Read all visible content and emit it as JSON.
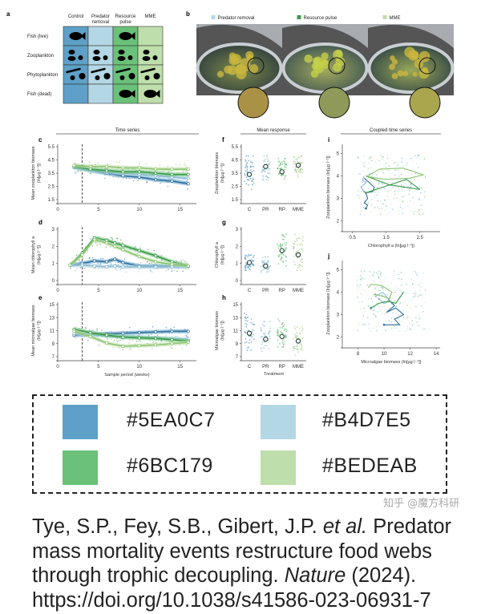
{
  "panel_a": {
    "label": "a",
    "columns": [
      "Control",
      "Predator\nremoval",
      "Resource\npulse",
      "MME"
    ],
    "rows": [
      "Fish (live)",
      "Zooplankton",
      "Phytoplankton",
      "Fish (dead)"
    ],
    "column_colors": [
      "#5EA0C7",
      "#B4D7E5",
      "#6BC179",
      "#BEDEAB"
    ],
    "presence": [
      [
        1,
        0,
        1,
        0
      ],
      [
        1,
        1,
        1,
        1
      ],
      [
        1,
        1,
        1,
        1
      ],
      [
        0,
        0,
        1,
        1
      ]
    ]
  },
  "panel_b": {
    "label": "b",
    "legend": [
      {
        "label": "Predator removal",
        "color": "#B4D7E5"
      },
      {
        "label": "Resource pulse",
        "color": "#3f9a4c"
      },
      {
        "label": "MME",
        "color": "#BEDEAB"
      }
    ]
  },
  "section_titles": {
    "time_series": "Time series",
    "mean_response": "Mean response",
    "coupled": "Coupled time series"
  },
  "chart_data": [
    {
      "id": "c",
      "label": "c",
      "type": "line",
      "ylabel": "Mean zooplankton biomass\n(ln[µg l⁻¹])",
      "xlim": [
        0,
        17
      ],
      "ylim": [
        1.5,
        5.5
      ],
      "xticks": [
        0,
        5,
        10,
        15
      ],
      "yticks": [
        1.5,
        2.5,
        3.5,
        4.5,
        5.5
      ],
      "event_week": 3,
      "x": [
        2,
        4,
        6,
        8,
        10,
        12,
        14,
        16
      ],
      "series": [
        {
          "treatment": "C",
          "color": "#2f6f9f",
          "values": [
            4.0,
            3.7,
            3.5,
            3.3,
            3.2,
            3.0,
            2.9,
            2.7
          ]
        },
        {
          "treatment": "PR",
          "color": "#8fbdd3",
          "values": [
            3.9,
            3.7,
            3.6,
            3.5,
            3.4,
            3.3,
            3.2,
            3.1
          ]
        },
        {
          "treatment": "RP",
          "color": "#3a9a4a",
          "values": [
            4.0,
            3.8,
            3.7,
            3.6,
            3.6,
            3.5,
            3.4,
            3.4
          ]
        },
        {
          "treatment": "MME",
          "color": "#8cc56f",
          "values": [
            4.1,
            4.0,
            4.0,
            3.9,
            3.9,
            3.8,
            3.8,
            3.8
          ]
        }
      ]
    },
    {
      "id": "d",
      "label": "d",
      "type": "line",
      "ylabel": "Mean chlorophyll a\n(ln[µg l⁻¹])",
      "xlim": [
        0,
        17
      ],
      "ylim": [
        0,
        3
      ],
      "xticks": [
        0,
        5,
        10,
        15
      ],
      "yticks": [
        0,
        1,
        2,
        3
      ],
      "event_week": 3,
      "x": [
        1.5,
        3,
        4.5,
        6,
        7,
        8,
        10,
        12,
        14,
        16
      ],
      "series": [
        {
          "treatment": "C",
          "color": "#2f6f9f",
          "values": [
            0.9,
            1.0,
            1.15,
            1.1,
            1.25,
            1.05,
            0.85,
            0.85,
            0.85,
            0.85
          ]
        },
        {
          "treatment": "PR",
          "color": "#8fbdd3",
          "values": [
            0.9,
            0.9,
            0.85,
            0.8,
            0.85,
            0.8,
            0.8,
            0.8,
            0.8,
            0.8
          ]
        },
        {
          "treatment": "RP",
          "color": "#3a9a4a",
          "values": [
            0.9,
            1.6,
            2.5,
            2.35,
            2.2,
            2.05,
            1.75,
            1.45,
            1.1,
            0.85
          ]
        },
        {
          "treatment": "MME",
          "color": "#8cc56f",
          "values": [
            0.9,
            1.5,
            2.4,
            2.2,
            2.0,
            1.8,
            1.4,
            1.1,
            0.95,
            0.85
          ]
        }
      ]
    },
    {
      "id": "e",
      "label": "e",
      "type": "line",
      "ylabel": "Mean microalgae biomass\n(ln[µg l⁻¹])",
      "xlabel": "Sample period (weeks)",
      "xlim": [
        0,
        17
      ],
      "ylim": [
        7,
        15
      ],
      "xticks": [
        0,
        5,
        10,
        15
      ],
      "yticks": [
        7,
        9,
        11,
        13,
        15
      ],
      "event_week": 3,
      "x": [
        2,
        4,
        6,
        8,
        10,
        12,
        14,
        16
      ],
      "series": [
        {
          "treatment": "C",
          "color": "#2f6f9f",
          "values": [
            10.3,
            10.4,
            10.5,
            10.6,
            10.7,
            10.8,
            10.9,
            10.9
          ]
        },
        {
          "treatment": "PR",
          "color": "#8fbdd3",
          "values": [
            10.6,
            10.4,
            10.2,
            10.1,
            10.0,
            9.9,
            9.8,
            9.7
          ]
        },
        {
          "treatment": "RP",
          "color": "#3a9a4a",
          "values": [
            11.2,
            10.7,
            10.3,
            10.0,
            9.9,
            9.8,
            9.6,
            9.4
          ]
        },
        {
          "treatment": "MME",
          "color": "#8cc56f",
          "values": [
            10.9,
            10.1,
            9.1,
            8.6,
            8.7,
            8.8,
            9.0,
            9.2
          ]
        }
      ]
    },
    {
      "id": "f",
      "label": "f",
      "type": "scatter",
      "ylabel": "Zooplankton biomass\n(ln[µg l⁻¹])",
      "categories": [
        "C",
        "PR",
        "RP",
        "MME"
      ],
      "ylim": [
        1.5,
        5.5
      ],
      "yticks": [
        1.5,
        2.5,
        3.5,
        4.5,
        5.5
      ],
      "means": [
        3.4,
        4.0,
        3.6,
        4.1
      ],
      "spread": [
        [
          2.2,
          4.8
        ],
        [
          3.0,
          4.8
        ],
        [
          2.9,
          4.6
        ],
        [
          3.2,
          4.8
        ]
      ]
    },
    {
      "id": "g",
      "label": "g",
      "type": "scatter",
      "ylabel": "Chlorophyll a\n(ln[µg l⁻¹])",
      "categories": [
        "C",
        "PR",
        "RP",
        "MME"
      ],
      "ylim": [
        0,
        3
      ],
      "yticks": [
        0,
        1,
        2,
        3
      ],
      "means": [
        1.05,
        0.85,
        1.75,
        1.5
      ],
      "spread": [
        [
          0.6,
          1.5
        ],
        [
          0.5,
          1.4
        ],
        [
          0.8,
          2.7
        ],
        [
          0.6,
          2.7
        ]
      ]
    },
    {
      "id": "h",
      "label": "h",
      "type": "scatter",
      "ylabel": "Microalgae biomass\n(ln[µg l⁻¹])",
      "xlabel": "Treatment",
      "categories": [
        "C",
        "PR",
        "RP",
        "MME"
      ],
      "ylim": [
        7,
        15
      ],
      "yticks": [
        7,
        9,
        11,
        13,
        15
      ],
      "means": [
        10.6,
        9.7,
        10.1,
        9.4
      ],
      "spread": [
        [
          8.0,
          14.0
        ],
        [
          7.8,
          12.4
        ],
        [
          8.5,
          12.8
        ],
        [
          7.2,
          11.6
        ]
      ]
    },
    {
      "id": "i",
      "label": "i",
      "type": "line",
      "xlabel": "Chlorophyll a (ln[µg l⁻¹])",
      "ylabel": "Zooplankton biomass (ln[µg l⁻¹])",
      "xlim": [
        0.2,
        3.1
      ],
      "ylim": [
        1.7,
        5.3
      ],
      "xticks": [
        0.5,
        1.5,
        2.5
      ],
      "yticks": [
        2,
        3,
        4,
        5
      ],
      "series": [
        {
          "treatment": "C",
          "color": "#2f6f9f",
          "x": [
            0.85,
            1.0,
            1.15,
            1.1,
            0.9,
            0.95,
            0.85,
            0.95,
            0.9
          ],
          "y": [
            3.9,
            3.7,
            3.5,
            3.3,
            3.25,
            3.0,
            2.8,
            2.7,
            2.55
          ]
        },
        {
          "treatment": "PR",
          "color": "#8fbdd3",
          "x": [
            0.85,
            0.8,
            0.9,
            0.75,
            0.85
          ],
          "y": [
            4.0,
            3.8,
            3.7,
            3.5,
            3.3
          ]
        },
        {
          "treatment": "RP",
          "color": "#3a9a4a",
          "x": [
            0.9,
            1.6,
            2.5,
            2.1,
            1.5,
            1.1,
            0.9
          ],
          "y": [
            4.0,
            3.6,
            3.4,
            3.85,
            3.55,
            3.35,
            3.25
          ]
        },
        {
          "treatment": "MME",
          "color": "#8cc56f",
          "x": [
            0.95,
            1.3,
            2.0,
            2.6,
            2.2,
            1.5,
            1.0
          ],
          "y": [
            4.0,
            4.3,
            4.35,
            4.05,
            3.9,
            3.85,
            3.95
          ]
        }
      ]
    },
    {
      "id": "j",
      "label": "j",
      "type": "line",
      "xlabel": "Microalgae biomass (ln[µg l⁻¹])",
      "ylabel": "Zooplankton biomass (ln[µg l⁻¹])",
      "xlim": [
        6.8,
        14.3
      ],
      "ylim": [
        1.7,
        5.3
      ],
      "xticks": [
        8,
        10,
        12,
        14
      ],
      "yticks": [
        2,
        3,
        4,
        5
      ],
      "series": [
        {
          "treatment": "C",
          "color": "#2f6f9f",
          "x": [
            10.3,
            10.8,
            10.2,
            10.9,
            11.5,
            10.8,
            11.2,
            10.0
          ],
          "y": [
            3.7,
            3.4,
            3.1,
            3.3,
            3.0,
            2.8,
            2.55,
            2.55
          ]
        },
        {
          "treatment": "PR",
          "color": "#8fbdd3",
          "x": [
            9.3,
            9.9,
            10.5,
            10.0,
            9.6
          ],
          "y": [
            3.8,
            4.0,
            3.6,
            3.5,
            3.7
          ]
        },
        {
          "treatment": "RP",
          "color": "#3a9a4a",
          "x": [
            11.5,
            10.9,
            10.3,
            9.6,
            9.0
          ],
          "y": [
            4.0,
            3.5,
            3.6,
            3.5,
            3.3
          ]
        },
        {
          "treatment": "MME",
          "color": "#8cc56f",
          "x": [
            8.8,
            9.0,
            9.8,
            10.6,
            10.4,
            10.0,
            9.3
          ],
          "y": [
            4.2,
            4.35,
            4.3,
            4.0,
            3.7,
            3.8,
            3.9
          ]
        }
      ]
    }
  ],
  "palette": [
    {
      "hex": "#5EA0C7",
      "label": "#5EA0C7"
    },
    {
      "hex": "#B4D7E5",
      "label": "#B4D7E5"
    },
    {
      "hex": "#6BC179",
      "label": "#6BC179"
    },
    {
      "hex": "#BEDEAB",
      "label": "#BEDEAB"
    }
  ],
  "citation": {
    "authors": "Tye, S.P., Fey, S.B., Gibert, J.P. ",
    "etal": "et al.",
    "title": " Predator mass mortality events restructure food webs through trophic decoupling. ",
    "journal": "Nature",
    "year": " (2024).",
    "doi": "https://doi.org/10.1038/s41586-023-06931-7"
  },
  "watermark": "知乎 @魔方科研"
}
